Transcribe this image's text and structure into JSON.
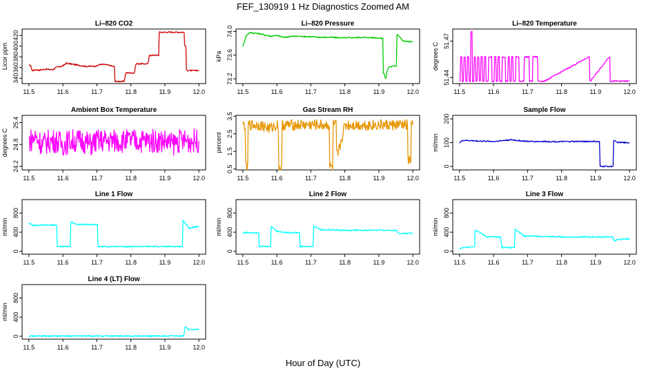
{
  "title": "FEF_130919  1 Hz Diagnostics Zoomed AM",
  "xlabel": "Hour of Day (UTC)",
  "chart_data": [
    {
      "type": "line",
      "title": "Li–820 CO2",
      "ylabel": "Licor ppm",
      "color": "#cc0000",
      "xlim": [
        11.48,
        12.02
      ],
      "ylim": [
        330,
        432
      ],
      "yticks": [
        "340",
        "360",
        "380",
        "400",
        "420"
      ],
      "xticks": [
        "11.5",
        "11.6",
        "11.7",
        "11.8",
        "11.9",
        "12.0"
      ],
      "x": [
        11.5,
        11.505,
        11.51,
        11.52,
        11.53,
        11.55,
        11.57,
        11.58,
        11.6,
        11.61,
        11.63,
        11.65,
        11.67,
        11.7,
        11.71,
        11.73,
        11.75,
        11.755,
        11.78,
        11.785,
        11.81,
        11.815,
        11.85,
        11.855,
        11.88,
        11.885,
        11.92,
        11.955,
        11.96,
        11.965,
        11.98,
        12.0
      ],
      "y": [
        364,
        364,
        354,
        356,
        355,
        357,
        356,
        360,
        363,
        368,
        366,
        364,
        362,
        363,
        366,
        365,
        362,
        334,
        334,
        350,
        350,
        367,
        367,
        383,
        383,
        426,
        426,
        426,
        400,
        355,
        354,
        355
      ]
    },
    {
      "type": "line",
      "title": "Li–820 Pressure",
      "ylabel": "kPa",
      "color": "#00cc00",
      "xlim": [
        11.48,
        12.02
      ],
      "ylim": [
        73.12,
        74.04
      ],
      "yticks": [
        "73.2",
        "73.6",
        "74.0"
      ],
      "xticks": [
        "11.5",
        "11.6",
        "11.7",
        "11.8",
        "11.9",
        "12.0"
      ],
      "x": [
        11.5,
        11.51,
        11.52,
        11.55,
        11.58,
        11.6,
        11.62,
        11.65,
        11.7,
        11.73,
        11.76,
        11.8,
        11.85,
        11.9,
        11.91,
        11.915,
        11.92,
        11.925,
        11.93,
        11.95,
        11.955,
        11.96,
        11.97,
        12.0
      ],
      "y": [
        73.75,
        73.93,
        73.98,
        73.96,
        73.92,
        73.93,
        73.9,
        73.92,
        73.91,
        73.9,
        73.9,
        73.89,
        73.9,
        73.89,
        73.88,
        73.3,
        73.2,
        73.35,
        73.4,
        73.42,
        73.95,
        73.92,
        73.84,
        73.82
      ]
    },
    {
      "type": "line",
      "title": "Li–820 Temperature",
      "ylabel": "degrees C",
      "color": "#ff00ff",
      "xlim": [
        11.48,
        12.02
      ],
      "ylim": [
        51.435,
        51.48
      ],
      "yticks": [
        "51.44",
        "51.47"
      ],
      "xticks": [
        "11.5",
        "11.6",
        "11.7",
        "11.8",
        "11.9",
        "12.0"
      ],
      "x": [
        11.5,
        11.505,
        11.51,
        11.515,
        11.52,
        11.525,
        11.53,
        11.535,
        11.54,
        11.545,
        11.55,
        11.555,
        11.56,
        11.565,
        11.57,
        11.575,
        11.58,
        11.59,
        11.6,
        11.605,
        11.61,
        11.615,
        11.62,
        11.63,
        11.64,
        11.645,
        11.65,
        11.655,
        11.66,
        11.67,
        11.68,
        11.7,
        11.71,
        11.72,
        11.74,
        11.75,
        11.88,
        11.885,
        11.94,
        11.945,
        12.0
      ],
      "y": [
        51.437,
        51.457,
        51.437,
        51.457,
        51.437,
        51.457,
        51.437,
        51.478,
        51.437,
        51.457,
        51.437,
        51.457,
        51.437,
        51.457,
        51.437,
        51.457,
        51.437,
        51.457,
        51.437,
        51.457,
        51.437,
        51.457,
        51.437,
        51.457,
        51.437,
        51.457,
        51.437,
        51.457,
        51.437,
        51.457,
        51.437,
        51.457,
        51.437,
        51.457,
        51.437,
        51.437,
        51.457,
        51.437,
        51.457,
        51.437,
        51.437
      ]
    },
    {
      "type": "line",
      "title": "Ambient Box Temperature",
      "ylabel": "degrees C",
      "color": "#ff00ff",
      "xlim": [
        11.48,
        12.02
      ],
      "ylim": [
        24.1,
        25.6
      ],
      "yticks": [
        "24.2",
        "24.8",
        "25.4"
      ],
      "xticks": [
        "11.5",
        "11.6",
        "11.7",
        "11.8",
        "11.9",
        "12.0"
      ],
      "x": [
        11.5,
        11.52,
        11.54,
        11.56,
        11.58,
        11.6,
        11.62,
        11.64,
        11.66,
        11.68,
        11.7,
        11.72,
        11.74,
        11.76,
        11.78,
        11.8,
        11.82,
        11.84,
        11.86,
        11.88,
        11.9,
        11.92,
        11.94,
        11.96,
        11.98,
        12.0
      ],
      "y": [
        24.9,
        25.0,
        24.8,
        24.9,
        24.9,
        24.8,
        24.9,
        24.9,
        24.9,
        24.8,
        24.9,
        24.9,
        24.9,
        24.9,
        24.9,
        24.9,
        24.9,
        24.9,
        24.9,
        24.9,
        24.9,
        24.8,
        24.9,
        24.9,
        24.9,
        24.9
      ]
    },
    {
      "type": "line",
      "title": "Gas Stream RH",
      "ylabel": "percent",
      "color": "#e69500",
      "xlim": [
        11.48,
        12.02
      ],
      "ylim": [
        0.45,
        3.55
      ],
      "yticks": [
        "0.5",
        "1.5",
        "2.5",
        "3.5"
      ],
      "xticks": [
        "11.5",
        "11.6",
        "11.7",
        "11.8",
        "11.9",
        "12.0"
      ],
      "x": [
        11.5,
        11.505,
        11.51,
        11.52,
        11.55,
        11.58,
        11.6,
        11.61,
        11.62,
        11.65,
        11.7,
        11.72,
        11.75,
        11.76,
        11.77,
        11.78,
        11.8,
        11.85,
        11.9,
        11.95,
        11.98,
        11.99,
        12.0
      ],
      "y": [
        3.0,
        3.0,
        0.6,
        3.0,
        3.0,
        2.8,
        3.0,
        0.6,
        3.0,
        3.0,
        3.0,
        3.0,
        3.0,
        0.6,
        3.0,
        1.3,
        3.0,
        3.0,
        3.0,
        3.0,
        3.0,
        1.0,
        3.0
      ]
    },
    {
      "type": "line",
      "title": "Sample Flow",
      "ylabel": "ml/min",
      "color": "#0000cc",
      "xlim": [
        11.48,
        12.02
      ],
      "ylim": [
        -15,
        215
      ],
      "yticks": [
        "0",
        "100",
        "200"
      ],
      "xticks": [
        "11.5",
        "11.6",
        "11.7",
        "11.8",
        "11.9",
        "12.0"
      ],
      "x": [
        11.5,
        11.51,
        11.55,
        11.6,
        11.65,
        11.7,
        11.75,
        11.8,
        11.85,
        11.9,
        11.91,
        11.915,
        11.95,
        11.955,
        11.96,
        11.98,
        12.0
      ],
      "y": [
        100,
        110,
        107,
        105,
        112,
        105,
        105,
        104,
        105,
        105,
        103,
        0,
        0,
        110,
        102,
        100,
        100
      ]
    },
    {
      "type": "line",
      "title": "Line 1 Flow",
      "ylabel": "ml/min",
      "color": "#00ffff",
      "xlim": [
        11.48,
        12.02
      ],
      "ylim": [
        -60,
        1080
      ],
      "yticks": [
        "0",
        "400",
        "800"
      ],
      "xticks": [
        "11.5",
        "11.6",
        "11.7",
        "11.8",
        "11.9",
        "12.0"
      ],
      "x": [
        11.5,
        11.51,
        11.58,
        11.585,
        11.62,
        11.625,
        11.64,
        11.7,
        11.705,
        11.95,
        11.955,
        11.97,
        12.0
      ],
      "y": [
        600,
        540,
        550,
        100,
        100,
        620,
        560,
        560,
        100,
        100,
        640,
        490,
        520
      ]
    },
    {
      "type": "line",
      "title": "Line 2 Flow",
      "ylabel": "ml/min",
      "color": "#00ffff",
      "xlim": [
        11.48,
        12.02
      ],
      "ylim": [
        -60,
        1080
      ],
      "yticks": [
        "0",
        "400",
        "800"
      ],
      "xticks": [
        "11.5",
        "11.6",
        "11.7",
        "11.8",
        "11.9",
        "12.0"
      ],
      "x": [
        11.5,
        11.545,
        11.55,
        11.58,
        11.585,
        11.6,
        11.63,
        11.665,
        11.67,
        11.705,
        11.71,
        11.73,
        11.8,
        11.9,
        11.95,
        11.96,
        12.0
      ],
      "y": [
        390,
        390,
        100,
        100,
        520,
        420,
        390,
        390,
        100,
        100,
        520,
        450,
        440,
        440,
        440,
        370,
        380
      ]
    },
    {
      "type": "line",
      "title": "Line 3 Flow",
      "ylabel": "ml/min",
      "color": "#00ffff",
      "xlim": [
        11.48,
        12.02
      ],
      "ylim": [
        -60,
        1080
      ],
      "yticks": [
        "0",
        "400",
        "800"
      ],
      "xticks": [
        "11.5",
        "11.6",
        "11.7",
        "11.8",
        "11.9",
        "12.0"
      ],
      "x": [
        11.5,
        11.535,
        11.54,
        11.55,
        11.58,
        11.62,
        11.625,
        11.66,
        11.665,
        11.69,
        11.8,
        11.9,
        11.95,
        11.955,
        11.98,
        12.0
      ],
      "y": [
        60,
        100,
        100,
        440,
        300,
        300,
        80,
        80,
        460,
        320,
        300,
        300,
        300,
        220,
        260,
        260
      ]
    },
    {
      "type": "line",
      "title": "Line 4 (LT) Flow",
      "ylabel": "ml/min",
      "color": "#00ffff",
      "xlim": [
        11.48,
        12.02
      ],
      "ylim": [
        -60,
        1080
      ],
      "yticks": [
        "0",
        "400",
        "800"
      ],
      "xticks": [
        "11.5",
        "11.6",
        "11.7",
        "11.8",
        "11.9",
        "12.0"
      ],
      "x": [
        11.5,
        11.955,
        11.96,
        11.97,
        12.0
      ],
      "y": [
        5,
        5,
        200,
        140,
        140
      ]
    }
  ]
}
